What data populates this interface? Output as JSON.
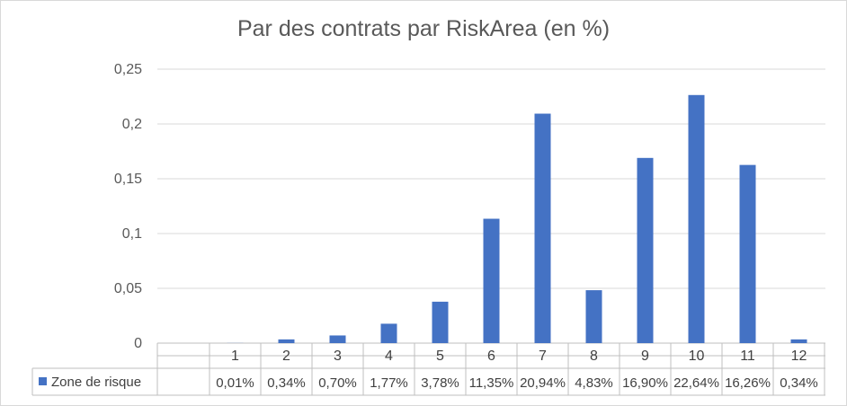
{
  "chart_data": {
    "type": "bar",
    "title": "Par des contrats par RiskArea (en %)",
    "categories": [
      "1",
      "2",
      "3",
      "4",
      "5",
      "6",
      "7",
      "8",
      "9",
      "10",
      "11",
      "12"
    ],
    "series": [
      {
        "name": "Zone de risque",
        "color": "#4472c4",
        "values": [
          0.0001,
          0.0034,
          0.007,
          0.0177,
          0.0378,
          0.1135,
          0.2094,
          0.0483,
          0.169,
          0.2264,
          0.1626,
          0.0034
        ],
        "table_labels": [
          "0,01%",
          "0,34%",
          "0,70%",
          "1,77%",
          "3,78%",
          "11,35%",
          "20,94%",
          "4,83%",
          "16,90%",
          "22,64%",
          "16,26%",
          "0,34%"
        ]
      }
    ],
    "ylim": [
      0,
      0.25
    ],
    "yticks": [
      "0",
      "0,05",
      "0,1",
      "0,15",
      "0,2",
      "0,25"
    ],
    "grid": true,
    "legend": "data-table"
  }
}
